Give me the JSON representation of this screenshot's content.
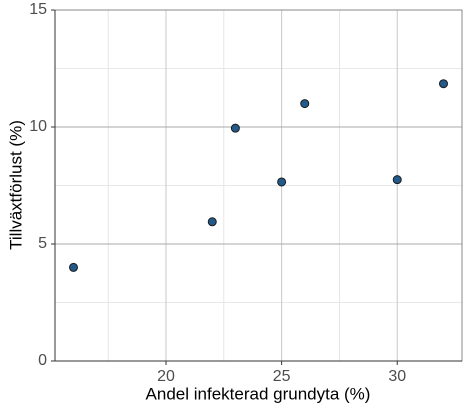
{
  "chart_data": {
    "type": "scatter",
    "x_label": "Andel infekterad grundyta (%)",
    "y_label": "Tillväxtförlust (%)",
    "x": [
      16,
      22,
      23,
      25,
      26,
      30,
      32
    ],
    "values": [
      4.0,
      5.95,
      9.95,
      7.65,
      11.0,
      7.75,
      11.85
    ],
    "color": "#235a8c",
    "xlim": [
      15.2,
      32.8
    ],
    "ylim": [
      0,
      15
    ],
    "xticks": [
      20,
      25,
      30
    ],
    "yticks": [
      0,
      5,
      10,
      15
    ],
    "xminor": [
      17.5,
      22.5,
      27.5
    ],
    "yminor": [
      2.5,
      7.5,
      12.5
    ],
    "grid": true
  }
}
